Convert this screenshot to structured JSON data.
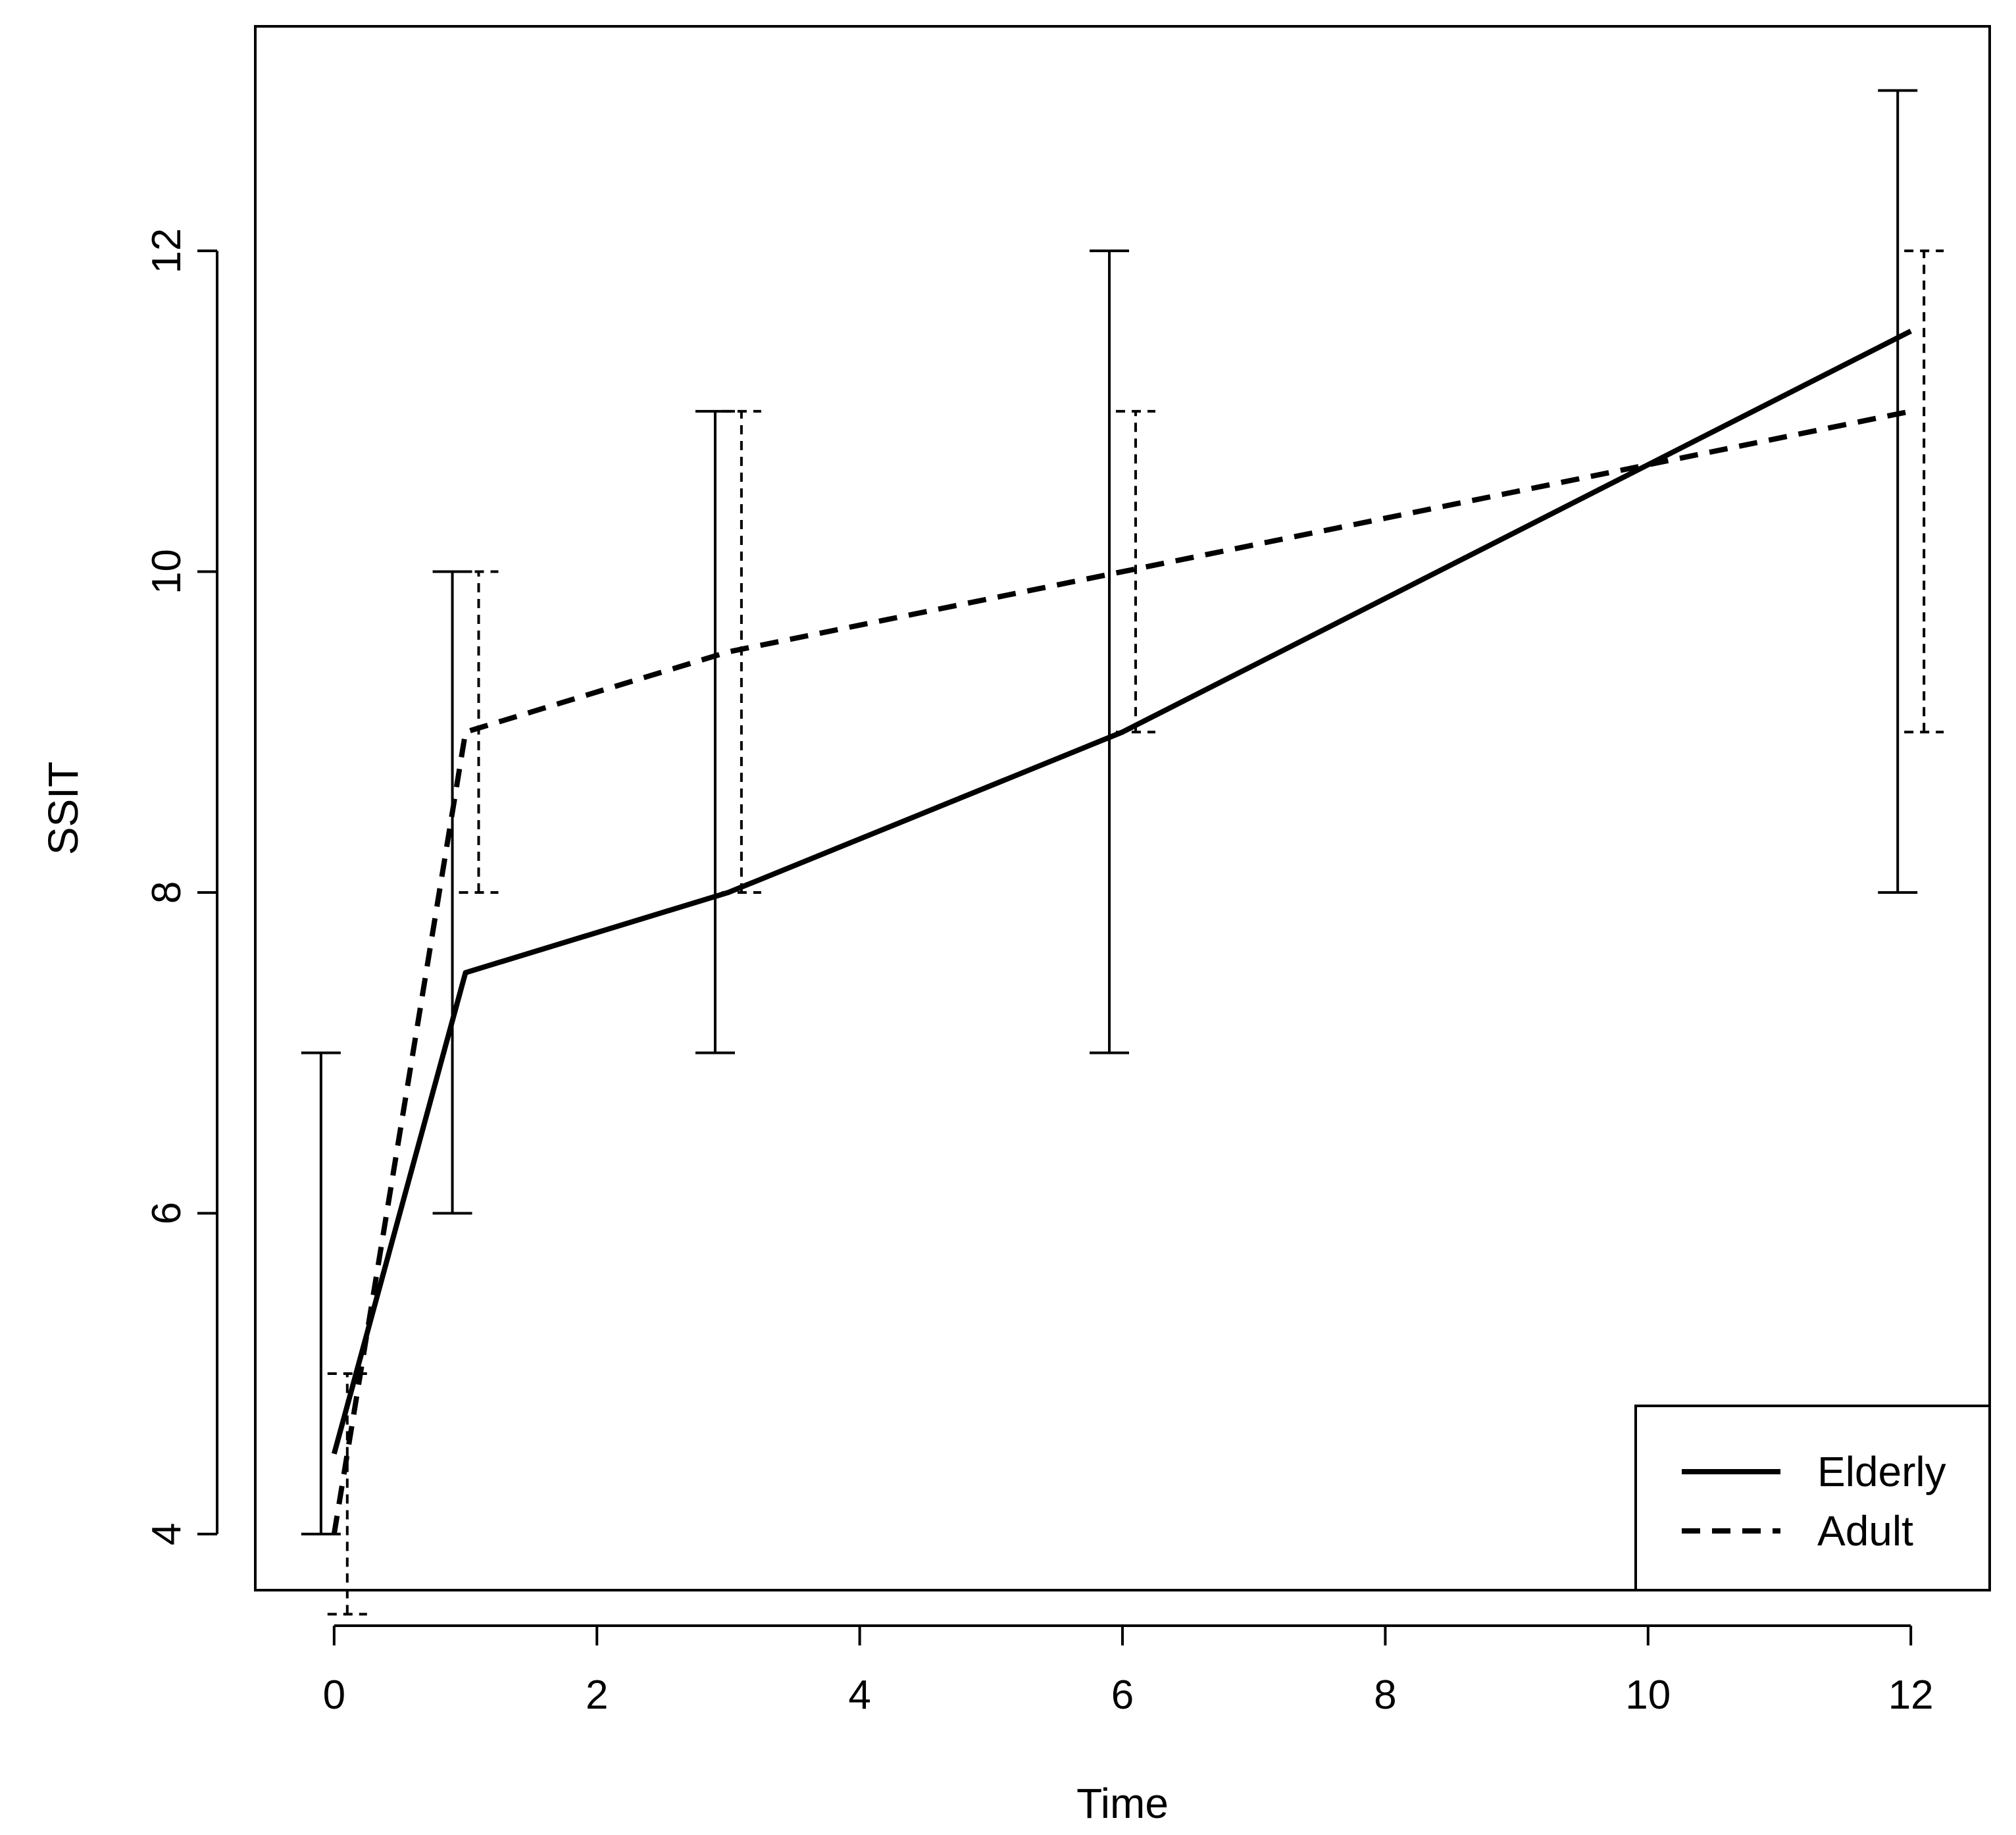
{
  "chart_data": {
    "type": "line",
    "title": "",
    "xlabel": "Time",
    "ylabel": "SSIT",
    "xlim": [
      -0.6,
      12.6
    ],
    "ylim": [
      3.65,
      13.4
    ],
    "xticks": [
      0,
      2,
      4,
      6,
      8,
      10,
      12
    ],
    "yticks": [
      4,
      6,
      8,
      10,
      12
    ],
    "xtick_labels": [
      "0",
      "2",
      "4",
      "6",
      "8",
      "10",
      "12"
    ],
    "ytick_labels": [
      "4",
      "6",
      "8",
      "10",
      "12"
    ],
    "grid": false,
    "legend_position": "bottom-right",
    "x": [
      0,
      1,
      3,
      6,
      12
    ],
    "series": [
      {
        "name": "Elderly",
        "line_style": "solid",
        "values": [
          4.5,
          7.5,
          8.0,
          9.0,
          11.5
        ],
        "error_low": [
          4,
          6,
          7,
          7,
          8
        ],
        "error_high": [
          7,
          10,
          11,
          12,
          13
        ]
      },
      {
        "name": "Adult",
        "line_style": "dashed",
        "values": [
          4.0,
          9.0,
          9.5,
          10.0,
          11.0
        ],
        "error_low": [
          3.5,
          8,
          8,
          9,
          9
        ],
        "error_high": [
          5,
          10,
          11,
          11,
          12
        ]
      }
    ]
  }
}
